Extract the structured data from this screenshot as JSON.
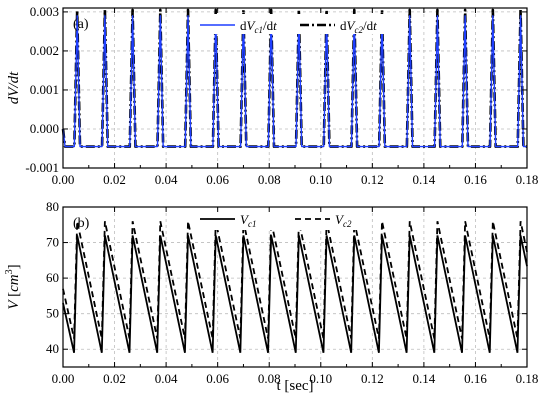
{
  "chart_data": [
    {
      "type": "line",
      "panel_label": "(a)",
      "ylabel": "dV/dt",
      "xlabel": "",
      "xlim": [
        0,
        0.18
      ],
      "ylim": [
        -0.001,
        0.0031
      ],
      "x_ticks": [
        "0.00",
        "0.02",
        "0.04",
        "0.06",
        "0.08",
        "0.10",
        "0.12",
        "0.14",
        "0.16",
        "0.18"
      ],
      "y_ticks": [
        "-0.001",
        "0.000",
        "0.001",
        "0.002",
        "0.003"
      ],
      "grid": true,
      "legend_position": "top-center",
      "period": 0.01075,
      "pulse_centers": [
        0.0055,
        0.01625,
        0.027,
        0.03775,
        0.0485,
        0.05925,
        0.07,
        0.08075,
        0.0915,
        0.10225,
        0.113,
        0.12375,
        0.1345,
        0.14525,
        0.156,
        0.16675,
        0.1775
      ],
      "series": [
        {
          "name": "dVc1/dt",
          "legend_main": "dV",
          "legend_sub": "c1",
          "legend_tail": "/dt",
          "color": "#1f3fff",
          "style": "solid",
          "baseline": -0.00045,
          "peak": 0.0029
        },
        {
          "name": "dVc2/dt",
          "legend_main": "dV",
          "legend_sub": "c2",
          "legend_tail": "/dt",
          "color": "#000000",
          "style": "dashdot",
          "baseline": -0.00045,
          "peak": 0.00305
        }
      ]
    },
    {
      "type": "line",
      "panel_label": "(b)",
      "ylabel": "V [cm3]",
      "xlabel": "t [sec]",
      "xlim": [
        0,
        0.18
      ],
      "ylim": [
        35,
        80
      ],
      "x_ticks": [
        "0.00",
        "0.02",
        "0.04",
        "0.06",
        "0.08",
        "0.10",
        "0.12",
        "0.14",
        "0.16",
        "0.18"
      ],
      "y_ticks": [
        "40",
        "50",
        "60",
        "70",
        "80"
      ],
      "grid": true,
      "legend_position": "top-center",
      "period": 0.01075,
      "series": [
        {
          "name": "Vc1",
          "legend_main": "V",
          "legend_sub": "c1",
          "color": "#000000",
          "style": "solid",
          "min": 39,
          "max": 72,
          "phase": 0.0055,
          "start_value": 53
        },
        {
          "name": "Vc2",
          "legend_main": "V",
          "legend_sub": "c2",
          "color": "#000000",
          "style": "dashed",
          "min": 43,
          "max": 76,
          "phase": 0.0055,
          "start_value": 57
        }
      ]
    }
  ]
}
